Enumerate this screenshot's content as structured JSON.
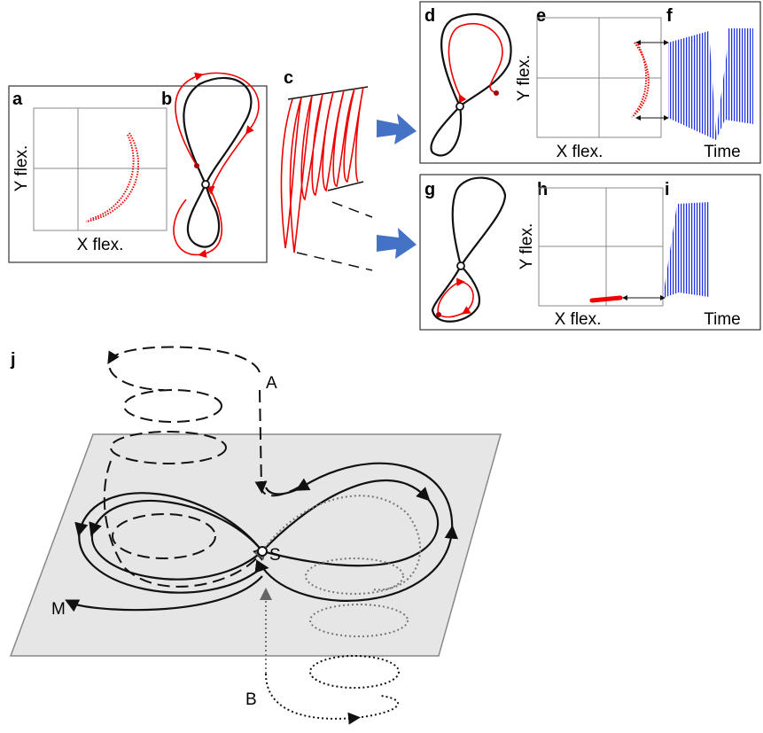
{
  "panels": [
    {
      "letter": "a",
      "y_label": "Y flex.",
      "x_label": "X flex."
    },
    {
      "letter": "b"
    },
    {
      "letter": "c"
    },
    {
      "letter": "d"
    },
    {
      "letter": "e",
      "y_label": "Y flex.",
      "x_label": "X flex."
    },
    {
      "letter": "f",
      "x_label": "Time"
    },
    {
      "letter": "g"
    },
    {
      "letter": "h",
      "y_label": "Y flex.",
      "x_label": "X flex."
    },
    {
      "letter": "i",
      "x_label": "Time"
    },
    {
      "letter": "j",
      "point_labels": [
        "A",
        "S",
        "M",
        "B"
      ]
    }
  ]
}
